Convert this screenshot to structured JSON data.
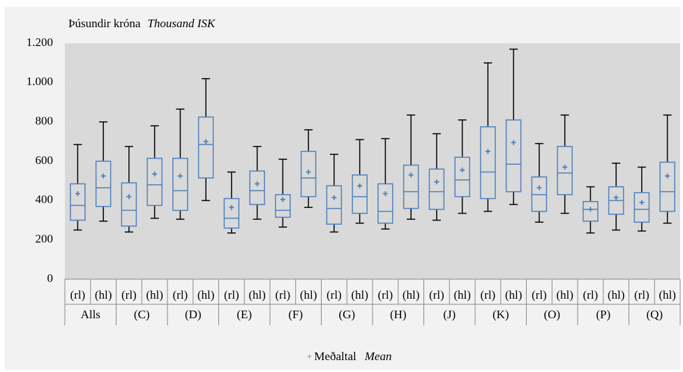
{
  "chart_data": {
    "type": "box",
    "y_axis_label": "Þúsundir króna",
    "y_axis_label_en": "Thousand ISK",
    "legend_marker": "+",
    "legend_label": "Meðaltal",
    "legend_label_en": "Mean",
    "groups": [
      "Alls",
      "(C)",
      "(D)",
      "(E)",
      "(F)",
      "(G)",
      "(H)",
      "(J)",
      "(K)",
      "(O)",
      "(P)",
      "(Q)"
    ],
    "subgroups": [
      "(rl)",
      "(hl)"
    ],
    "box_color": "#4f81bd",
    "whisker_color": "#000000",
    "mean_color": "#4f81bd",
    "ylim": [
      0,
      1200
    ],
    "yticks": [
      0,
      200,
      400,
      600,
      800,
      {
        "value": 1000,
        "label": "1.000"
      },
      {
        "value": 1200,
        "label": "1.200"
      }
    ],
    "boxes": [
      {
        "min": 250,
        "q1": 300,
        "median": 375,
        "q3": 485,
        "max": 685,
        "mean": 435
      },
      {
        "min": 295,
        "q1": 370,
        "median": 465,
        "q3": 600,
        "max": 800,
        "mean": 525
      },
      {
        "min": 240,
        "q1": 270,
        "median": 350,
        "q3": 490,
        "max": 675,
        "mean": 420
      },
      {
        "min": 310,
        "q1": 375,
        "median": 480,
        "q3": 615,
        "max": 780,
        "mean": 535
      },
      {
        "min": 305,
        "q1": 350,
        "median": 450,
        "q3": 615,
        "max": 865,
        "mean": 525
      },
      {
        "min": 400,
        "q1": 515,
        "median": 685,
        "q3": 825,
        "max": 1020,
        "mean": 700
      },
      {
        "min": 235,
        "q1": 260,
        "median": 310,
        "q3": 410,
        "max": 545,
        "mean": 365
      },
      {
        "min": 305,
        "q1": 380,
        "median": 450,
        "q3": 550,
        "max": 675,
        "mean": 485
      },
      {
        "min": 265,
        "q1": 315,
        "median": 350,
        "q3": 430,
        "max": 610,
        "mean": 405
      },
      {
        "min": 365,
        "q1": 420,
        "median": 515,
        "q3": 650,
        "max": 760,
        "mean": 545
      },
      {
        "min": 240,
        "q1": 280,
        "median": 360,
        "q3": 475,
        "max": 635,
        "mean": 415
      },
      {
        "min": 285,
        "q1": 335,
        "median": 420,
        "q3": 530,
        "max": 710,
        "mean": 475
      },
      {
        "min": 255,
        "q1": 285,
        "median": 345,
        "q3": 485,
        "max": 715,
        "mean": 435
      },
      {
        "min": 305,
        "q1": 360,
        "median": 445,
        "q3": 580,
        "max": 835,
        "mean": 530
      },
      {
        "min": 300,
        "q1": 355,
        "median": 445,
        "q3": 560,
        "max": 740,
        "mean": 495
      },
      {
        "min": 335,
        "q1": 420,
        "median": 505,
        "q3": 620,
        "max": 810,
        "mean": 555
      },
      {
        "min": 345,
        "q1": 410,
        "median": 545,
        "q3": 775,
        "max": 1100,
        "mean": 650
      },
      {
        "min": 380,
        "q1": 445,
        "median": 585,
        "q3": 810,
        "max": 1170,
        "mean": 695
      },
      {
        "min": 290,
        "q1": 345,
        "median": 430,
        "q3": 520,
        "max": 690,
        "mean": 465
      },
      {
        "min": 335,
        "q1": 430,
        "median": 540,
        "q3": 675,
        "max": 835,
        "mean": 570
      },
      {
        "min": 235,
        "q1": 295,
        "median": 355,
        "q3": 395,
        "max": 470,
        "mean": 355
      },
      {
        "min": 250,
        "q1": 330,
        "median": 400,
        "q3": 470,
        "max": 590,
        "mean": 415
      },
      {
        "min": 245,
        "q1": 290,
        "median": 355,
        "q3": 440,
        "max": 570,
        "mean": 390
      },
      {
        "min": 285,
        "q1": 345,
        "median": 445,
        "q3": 595,
        "max": 835,
        "mean": 525
      }
    ]
  }
}
